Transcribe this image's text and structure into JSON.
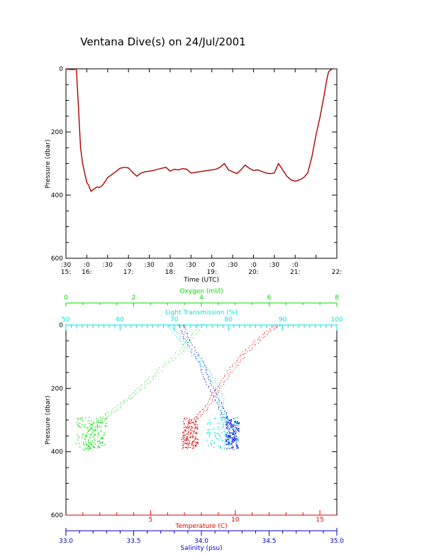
{
  "title": "Ventana Dive(s) on 24/Jul/2001",
  "colors": {
    "depth_line": "#000000",
    "depth_trace": "#cc0000",
    "oxygen": "#00dd00",
    "light": "#00e0e0",
    "temperature": "#dd0000",
    "salinity": "#0000cc",
    "axis": "#000000"
  },
  "chart_data": [
    {
      "type": "line",
      "title": "Ventana Dive(s) on 24/Jul/2001",
      "xlabel": "Time (UTC)",
      "ylabel": "Pressure (dbar)",
      "ylim": [
        0,
        600
      ],
      "y_reversed": true,
      "yticks": [
        "0",
        "200",
        "400",
        "600"
      ],
      "x_hours_range": [
        15.5,
        22.0
      ],
      "xtick_labels_top": [
        ":30",
        ":0",
        ":30",
        ":0",
        ":30",
        ":0",
        ":30",
        ":0",
        ":30",
        ":0",
        ":30",
        ":0"
      ],
      "xtick_labels_bottom": [
        "15:",
        "16:",
        "",
        "17:",
        "",
        "18:",
        "",
        "19:",
        "",
        "20:",
        "",
        "21:",
        "",
        "22:"
      ],
      "series": [
        {
          "x_hours": [
            15.5,
            15.53,
            15.55,
            15.57,
            15.6,
            15.7,
            15.75,
            15.8,
            15.85,
            15.9,
            15.95,
            16.0,
            16.05,
            16.1,
            16.15,
            16.2,
            16.25,
            16.3,
            16.35,
            16.4,
            16.45,
            16.5,
            16.55,
            16.6,
            16.7,
            16.8,
            16.9,
            17.0,
            17.1,
            17.2,
            17.3,
            17.4,
            17.5,
            17.6,
            17.7,
            17.8,
            17.9,
            18.0,
            18.1,
            18.2,
            18.3,
            18.4,
            18.5,
            18.6,
            18.7,
            18.8,
            18.9,
            19.0,
            19.1,
            19.2,
            19.3,
            19.4,
            19.5,
            19.6,
            19.7,
            19.8,
            19.9,
            20.0,
            20.1,
            20.2,
            20.3,
            20.4,
            20.5,
            20.6,
            20.7,
            20.8,
            20.9,
            21.0,
            21.1,
            21.2,
            21.3,
            21.4,
            21.5,
            21.6,
            21.7,
            21.75,
            21.8,
            21.85,
            21.9
          ],
          "y_dbar": [
            0,
            0,
            2,
            1,
            2,
            2,
            0,
            120,
            250,
            300,
            330,
            360,
            370,
            388,
            383,
            378,
            374,
            376,
            372,
            365,
            355,
            345,
            340,
            335,
            325,
            315,
            312,
            314,
            328,
            340,
            330,
            326,
            324,
            322,
            318,
            315,
            312,
            324,
            318,
            320,
            316,
            318,
            330,
            328,
            326,
            324,
            322,
            320,
            318,
            312,
            300,
            320,
            326,
            332,
            320,
            305,
            315,
            322,
            320,
            325,
            330,
            332,
            330,
            300,
            320,
            340,
            352,
            356,
            352,
            345,
            330,
            280,
            210,
            150,
            80,
            40,
            10,
            3,
            0
          ]
        }
      ]
    },
    {
      "type": "scatter",
      "ylabel": "Pressure (dbar)",
      "ylim": [
        0,
        600
      ],
      "y_reversed": true,
      "yticks": [
        "0",
        "200",
        "400",
        "600"
      ],
      "axes": {
        "oxygen": {
          "label": "Oxygen (ml/l)",
          "range": [
            0,
            8
          ],
          "ticks": [
            "0",
            "2",
            "4",
            "6",
            "8"
          ]
        },
        "light_transmission": {
          "label": "Light Transmission (%)",
          "range": [
            50,
            100
          ],
          "ticks": [
            "50",
            "60",
            "70",
            "80",
            "90",
            "100"
          ]
        },
        "temperature": {
          "label": "Temperature (C)",
          "range": [
            0,
            16
          ],
          "ticks": [
            "5",
            "10",
            "15"
          ]
        },
        "salinity": {
          "label": "Salinity (psu)",
          "range": [
            33.0,
            35.0
          ],
          "ticks": [
            "33.0",
            "33.5",
            "34.0",
            "34.5",
            "35.0"
          ]
        }
      },
      "series": [
        {
          "name": "Oxygen (ml/l)",
          "color_key": "oxygen",
          "profile": [
            [
              4.0,
              0
            ],
            [
              3.4,
              80
            ],
            [
              2.6,
              160
            ],
            [
              2.0,
              220
            ],
            [
              1.4,
              270
            ],
            [
              0.9,
              310
            ],
            [
              0.7,
              340
            ],
            [
              0.6,
              370
            ],
            [
              0.75,
              385
            ],
            [
              0.55,
              395
            ]
          ],
          "cluster": {
            "x_range": [
              0.3,
              1.2
            ],
            "p_range": [
              290,
              390
            ]
          }
        },
        {
          "name": "Light Transmission (%)",
          "color_key": "light",
          "profile": [
            [
              69,
              0
            ],
            [
              72,
              60
            ],
            [
              75,
              120
            ],
            [
              77,
              170
            ],
            [
              78.5,
              220
            ],
            [
              79,
              280
            ],
            [
              79.5,
              320
            ],
            [
              80,
              360
            ],
            [
              79.5,
              395
            ]
          ],
          "cluster": {
            "x_range": [
              76,
              82
            ],
            "p_range": [
              290,
              390
            ]
          }
        },
        {
          "name": "Temperature (C)",
          "color_key": "temperature",
          "profile": [
            [
              12.5,
              0
            ],
            [
              11.5,
              40
            ],
            [
              10.5,
              90
            ],
            [
              9.8,
              140
            ],
            [
              9.0,
              200
            ],
            [
              8.3,
              260
            ],
            [
              7.6,
              300
            ],
            [
              7.2,
              330
            ],
            [
              7.0,
              360
            ],
            [
              7.1,
              395
            ]
          ],
          "cluster": {
            "x_range": [
              6.9,
              7.8
            ],
            "p_range": [
              290,
              390
            ]
          }
        },
        {
          "name": "Salinity (psu)",
          "color_key": "salinity",
          "profile": [
            [
              33.85,
              0
            ],
            [
              33.9,
              50
            ],
            [
              34.0,
              120
            ],
            [
              34.05,
              180
            ],
            [
              34.12,
              240
            ],
            [
              34.18,
              290
            ],
            [
              34.22,
              330
            ],
            [
              34.24,
              360
            ],
            [
              34.25,
              395
            ]
          ],
          "cluster": {
            "x_range": [
              34.18,
              34.28
            ],
            "p_range": [
              290,
              390
            ]
          }
        }
      ]
    }
  ]
}
